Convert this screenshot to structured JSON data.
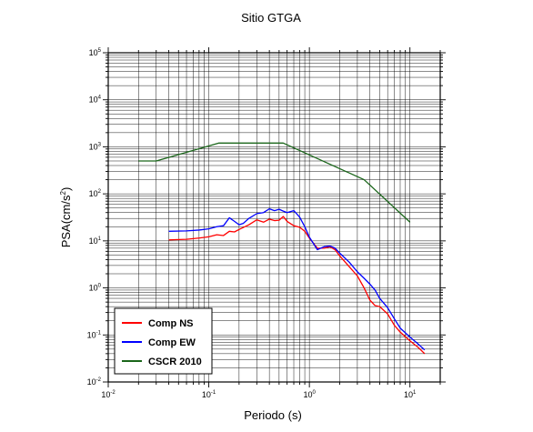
{
  "chart_data": {
    "type": "line",
    "title": "Sitio GTGA",
    "xlabel": "Periodo (s)",
    "ylabel": {
      "base": "PSA(cm/s",
      "sup": "2",
      "close": ")"
    },
    "xscale": "log",
    "yscale": "log",
    "xlim": [
      0.01,
      20
    ],
    "ylim": [
      0.01,
      100000
    ],
    "grid": true,
    "legend_position": "bottom-left",
    "x_ticks": [
      {
        "base": "10",
        "exp": "-2",
        "value": 0.01
      },
      {
        "base": "10",
        "exp": "-1",
        "value": 0.1
      },
      {
        "base": "10",
        "exp": "0",
        "value": 1
      },
      {
        "base": "10",
        "exp": "1",
        "value": 10
      }
    ],
    "y_ticks": [
      {
        "base": "10",
        "exp": "-2",
        "value": 0.01
      },
      {
        "base": "10",
        "exp": "-1",
        "value": 0.1
      },
      {
        "base": "10",
        "exp": "0",
        "value": 1
      },
      {
        "base": "10",
        "exp": "1",
        "value": 10
      },
      {
        "base": "10",
        "exp": "2",
        "value": 100
      },
      {
        "base": "10",
        "exp": "3",
        "value": 1000
      },
      {
        "base": "10",
        "exp": "4",
        "value": 10000
      },
      {
        "base": "10",
        "exp": "5",
        "value": 100000
      }
    ],
    "series": [
      {
        "name": "Comp NS",
        "color": "#ff0000",
        "points": [
          [
            0.04,
            10.5
          ],
          [
            0.06,
            10.8
          ],
          [
            0.08,
            11.5
          ],
          [
            0.1,
            12.2
          ],
          [
            0.12,
            13.5
          ],
          [
            0.14,
            13.0
          ],
          [
            0.16,
            16.0
          ],
          [
            0.18,
            15.5
          ],
          [
            0.2,
            17.5
          ],
          [
            0.25,
            22.0
          ],
          [
            0.3,
            28.0
          ],
          [
            0.35,
            25.0
          ],
          [
            0.4,
            29.0
          ],
          [
            0.45,
            27.0
          ],
          [
            0.5,
            27.5
          ],
          [
            0.55,
            33.0
          ],
          [
            0.6,
            26.0
          ],
          [
            0.7,
            21.0
          ],
          [
            0.8,
            19.5
          ],
          [
            0.9,
            16.0
          ],
          [
            1.0,
            11.5
          ],
          [
            1.2,
            7.0
          ],
          [
            1.4,
            7.0
          ],
          [
            1.6,
            7.5
          ],
          [
            1.8,
            6.5
          ],
          [
            2.0,
            4.8
          ],
          [
            2.5,
            2.8
          ],
          [
            3.0,
            1.8
          ],
          [
            3.5,
            1.0
          ],
          [
            4.0,
            0.55
          ],
          [
            4.5,
            0.42
          ],
          [
            5.0,
            0.4
          ],
          [
            6.0,
            0.28
          ],
          [
            7.0,
            0.16
          ],
          [
            8.0,
            0.115
          ],
          [
            10.0,
            0.075
          ],
          [
            12.0,
            0.055
          ],
          [
            14.0,
            0.04
          ]
        ]
      },
      {
        "name": "Comp EW",
        "color": "#0000ff",
        "points": [
          [
            0.04,
            16.0
          ],
          [
            0.06,
            16.3
          ],
          [
            0.08,
            17.0
          ],
          [
            0.1,
            18.0
          ],
          [
            0.12,
            20.0
          ],
          [
            0.14,
            21.0
          ],
          [
            0.16,
            31.0
          ],
          [
            0.18,
            26.0
          ],
          [
            0.2,
            22.0
          ],
          [
            0.22,
            23.5
          ],
          [
            0.25,
            30.0
          ],
          [
            0.3,
            38.0
          ],
          [
            0.35,
            40.0
          ],
          [
            0.4,
            48.0
          ],
          [
            0.45,
            44.0
          ],
          [
            0.5,
            47.0
          ],
          [
            0.55,
            43.0
          ],
          [
            0.6,
            40.0
          ],
          [
            0.7,
            44.0
          ],
          [
            0.8,
            32.0
          ],
          [
            0.9,
            20.0
          ],
          [
            1.0,
            12.0
          ],
          [
            1.2,
            6.5
          ],
          [
            1.4,
            7.5
          ],
          [
            1.6,
            7.8
          ],
          [
            1.8,
            7.0
          ],
          [
            2.0,
            5.5
          ],
          [
            2.5,
            3.5
          ],
          [
            3.0,
            2.2
          ],
          [
            3.5,
            1.6
          ],
          [
            4.0,
            1.2
          ],
          [
            4.5,
            0.9
          ],
          [
            5.0,
            0.6
          ],
          [
            6.0,
            0.38
          ],
          [
            7.0,
            0.22
          ],
          [
            8.0,
            0.14
          ],
          [
            10.0,
            0.09
          ],
          [
            12.0,
            0.065
          ],
          [
            14.0,
            0.048
          ]
        ]
      },
      {
        "name": "CSCR 2010",
        "color": "#1a661a",
        "points": [
          [
            0.02,
            500
          ],
          [
            0.03,
            500
          ],
          [
            0.125,
            1200
          ],
          [
            0.55,
            1200
          ],
          [
            3.5,
            200
          ],
          [
            10.0,
            25
          ]
        ]
      }
    ]
  }
}
